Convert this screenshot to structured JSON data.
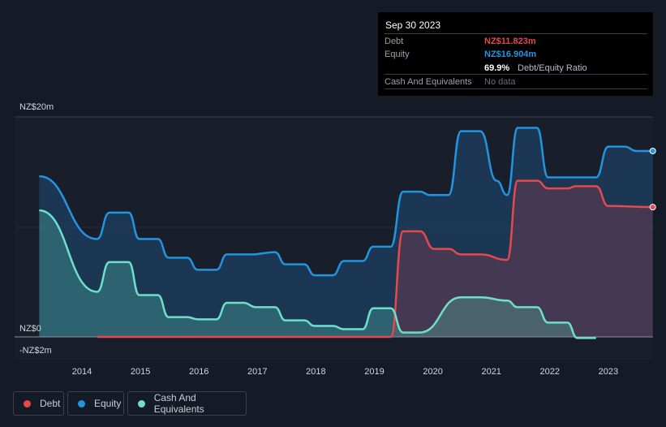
{
  "tooltip": {
    "date": "Sep 30 2023",
    "debt_label": "Debt",
    "debt_value": "NZ$11.823m",
    "equity_label": "Equity",
    "equity_value": "NZ$16.904m",
    "ratio_value": "69.9%",
    "ratio_label": "Debt/Equity Ratio",
    "cash_label": "Cash And Equivalents",
    "cash_value": "No data"
  },
  "colors": {
    "debt": "#e5484d",
    "equity": "#2394df",
    "cash": "#6ee0c8"
  },
  "chart_data": {
    "type": "area",
    "ylabel_top": "NZ$20m",
    "ylabel_zero": "NZ$0",
    "ylabel_bottom": "-NZ$2m",
    "ylim": [
      -2,
      20
    ],
    "xlim": [
      2013.27,
      2023.76
    ],
    "xticks": [
      "2014",
      "2015",
      "2016",
      "2017",
      "2018",
      "2019",
      "2020",
      "2021",
      "2022",
      "2023"
    ],
    "legend": [
      "Debt",
      "Equity",
      "Cash And Equivalents"
    ],
    "series": [
      {
        "name": "Equity",
        "x": [
          2013.27,
          2014.26,
          2014.47,
          2014.8,
          2014.98,
          2015.3,
          2015.48,
          2015.8,
          2015.98,
          2016.3,
          2016.48,
          2016.9,
          2017.3,
          2017.48,
          2017.8,
          2017.98,
          2018.29,
          2018.48,
          2018.8,
          2018.98,
          2019.28,
          2019.49,
          2019.78,
          2019.95,
          2020.27,
          2020.48,
          2020.81,
          2021.09,
          2021.27,
          2021.45,
          2021.78,
          2021.97,
          2022.45,
          2022.79,
          2023.0,
          2023.28,
          2023.48,
          2023.76
        ],
        "y": [
          14.6,
          8.9,
          11.3,
          11.3,
          8.9,
          8.9,
          7.2,
          7.2,
          6.1,
          6.1,
          7.5,
          7.5,
          7.7,
          6.6,
          6.6,
          5.6,
          5.6,
          6.9,
          6.9,
          8.2,
          8.2,
          13.2,
          13.2,
          12.9,
          12.9,
          18.7,
          18.7,
          14.2,
          12.9,
          19.0,
          19.0,
          14.5,
          14.5,
          14.5,
          17.3,
          17.3,
          16.9,
          16.9
        ]
      },
      {
        "name": "Debt",
        "x": [
          2014.26,
          2019.28,
          2019.49,
          2019.78,
          2020.02,
          2020.27,
          2020.48,
          2020.81,
          2021.27,
          2021.45,
          2021.78,
          2021.97,
          2022.3,
          2022.45,
          2022.79,
          2023.0,
          2023.76
        ],
        "y": [
          0,
          0,
          9.6,
          9.6,
          8.0,
          8.0,
          7.5,
          7.5,
          7.0,
          14.2,
          14.2,
          13.5,
          13.5,
          13.7,
          13.7,
          11.9,
          11.8
        ]
      },
      {
        "name": "Cash And Equivalents",
        "x": [
          2013.27,
          2014.26,
          2014.47,
          2014.8,
          2014.98,
          2015.3,
          2015.48,
          2015.8,
          2015.98,
          2016.3,
          2016.48,
          2016.76,
          2016.98,
          2017.3,
          2017.48,
          2017.8,
          2017.98,
          2018.29,
          2018.48,
          2018.8,
          2018.98,
          2019.28,
          2019.49,
          2019.78,
          2020.48,
          2020.81,
          2021.27,
          2021.45,
          2021.78,
          2021.97,
          2022.3,
          2022.47,
          2022.79
        ],
        "y": [
          11.5,
          4.1,
          6.8,
          6.8,
          3.8,
          3.8,
          1.8,
          1.8,
          1.6,
          1.6,
          3.1,
          3.1,
          2.7,
          2.7,
          1.5,
          1.5,
          1.0,
          1.0,
          0.7,
          0.7,
          2.6,
          2.6,
          0.4,
          0.4,
          3.6,
          3.6,
          3.3,
          2.7,
          2.7,
          1.3,
          1.3,
          -0.1,
          -0.1
        ]
      }
    ]
  }
}
